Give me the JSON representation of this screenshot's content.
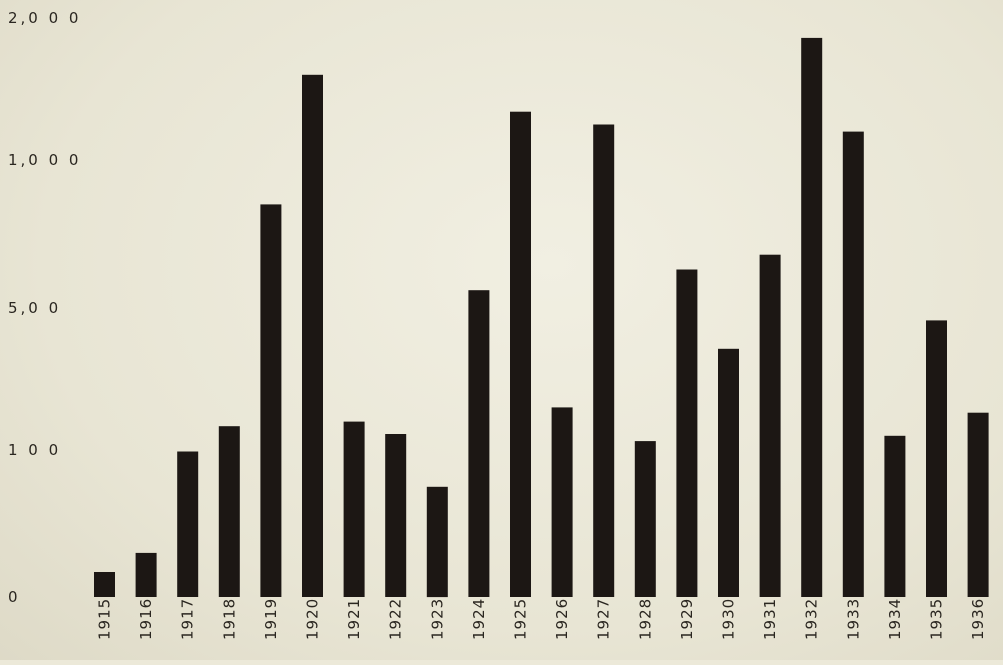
{
  "chart_data": {
    "type": "bar",
    "title": "",
    "xlabel": "",
    "ylabel": "",
    "categories": [
      "1915",
      "1916",
      "1917",
      "1918",
      "1919",
      "1920",
      "1921",
      "1922",
      "1923",
      "1924",
      "1925",
      "1926",
      "1927",
      "1928",
      "1929",
      "1930",
      "1931",
      "1932",
      "1933",
      "1934",
      "1935",
      "1936"
    ],
    "values": [
      17,
      30,
      99,
      167,
      850,
      1600,
      180,
      145,
      75,
      560,
      1340,
      220,
      1250,
      125,
      630,
      385,
      680,
      1860,
      1200,
      140,
      465,
      205
    ],
    "y_scale": "log-like (non-uniform)",
    "y_ticks": [
      {
        "value": 0,
        "label": "0"
      },
      {
        "value": 100,
        "label": "1 0 0"
      },
      {
        "value": 500,
        "label": "5,0 0"
      },
      {
        "value": 1000,
        "label": "1,0 0 0"
      },
      {
        "value": 2000,
        "label": "2,0 0 0"
      }
    ],
    "ylim": [
      0,
      2000
    ],
    "grid": false,
    "legend": "none",
    "bar_color": "#1c1714",
    "background_color": "#ece9d9"
  }
}
